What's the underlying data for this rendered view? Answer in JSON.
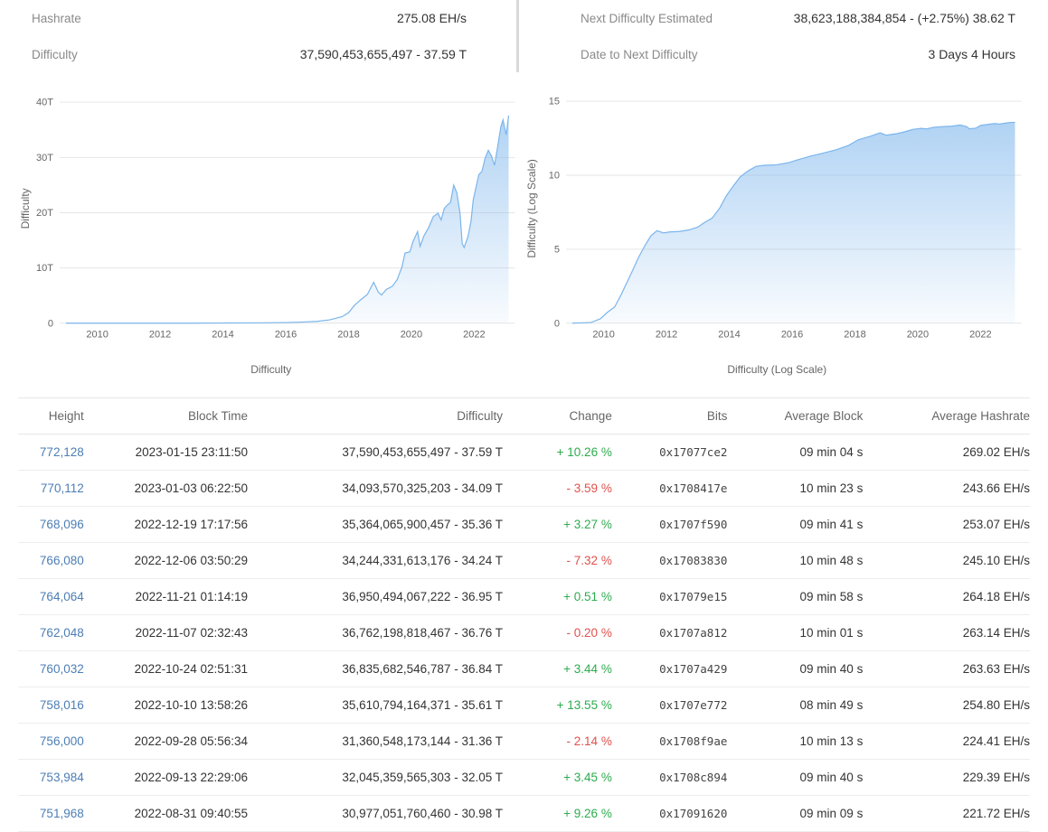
{
  "accent_colors": {
    "link": "#4c7eb5",
    "positive": "#2eab4f",
    "negative": "#e0514c",
    "chart_line": "#7cb5ec",
    "gridline": "#e6e6e6",
    "axis_text": "#666666"
  },
  "stats": {
    "left": [
      {
        "label": "Hashrate",
        "value": "275.08 EH/s"
      },
      {
        "label": "Difficulty",
        "value": "37,590,453,655,497 - 37.59 T"
      }
    ],
    "right": [
      {
        "label": "Next Difficulty Estimated",
        "value": "38,623,188,384,854 - (+2.75%) 38.62 T"
      },
      {
        "label": "Date to Next Difficulty",
        "value": "3 Days 4 Hours"
      }
    ]
  },
  "chart_data": [
    {
      "type": "area",
      "title": "Difficulty",
      "y_axis_title": "Difficulty",
      "legend_position": "none",
      "grid": true,
      "xlim": [
        2008.8,
        2023.3
      ],
      "ylim": [
        0,
        41.5
      ],
      "x_ticks": [
        2010,
        2012,
        2014,
        2016,
        2018,
        2020,
        2022
      ],
      "y_ticks": [
        {
          "v": 0,
          "label": "0"
        },
        {
          "v": 10,
          "label": "10T"
        },
        {
          "v": 20,
          "label": "20T"
        },
        {
          "v": 30,
          "label": "30T"
        },
        {
          "v": 40,
          "label": "40T"
        }
      ],
      "y_unit": "T (trillions of difficulty)",
      "points": [
        [
          2009.0,
          0
        ],
        [
          2012.0,
          0.001
        ],
        [
          2013.0,
          0.002
        ],
        [
          2014.0,
          0.03
        ],
        [
          2015.0,
          0.05
        ],
        [
          2016.0,
          0.12
        ],
        [
          2016.5,
          0.2
        ],
        [
          2017.0,
          0.33
        ],
        [
          2017.4,
          0.6
        ],
        [
          2017.8,
          1.2
        ],
        [
          2018.0,
          1.9
        ],
        [
          2018.2,
          3.3
        ],
        [
          2018.4,
          4.3
        ],
        [
          2018.6,
          5.2
        ],
        [
          2018.8,
          7.4
        ],
        [
          2018.95,
          5.6
        ],
        [
          2019.05,
          5.1
        ],
        [
          2019.2,
          6.1
        ],
        [
          2019.4,
          6.7
        ],
        [
          2019.55,
          7.9
        ],
        [
          2019.7,
          10.2
        ],
        [
          2019.8,
          12.7
        ],
        [
          2019.95,
          12.9
        ],
        [
          2020.05,
          14.7
        ],
        [
          2020.2,
          16.6
        ],
        [
          2020.28,
          13.9
        ],
        [
          2020.4,
          15.8
        ],
        [
          2020.55,
          17.3
        ],
        [
          2020.7,
          19.3
        ],
        [
          2020.85,
          19.9
        ],
        [
          2020.95,
          18.7
        ],
        [
          2021.05,
          20.8
        ],
        [
          2021.15,
          21.4
        ],
        [
          2021.25,
          21.9
        ],
        [
          2021.35,
          25.0
        ],
        [
          2021.45,
          23.6
        ],
        [
          2021.55,
          19.9
        ],
        [
          2021.62,
          14.4
        ],
        [
          2021.68,
          13.7
        ],
        [
          2021.8,
          15.6
        ],
        [
          2021.9,
          18.4
        ],
        [
          2021.97,
          22.3
        ],
        [
          2022.05,
          24.4
        ],
        [
          2022.15,
          26.9
        ],
        [
          2022.25,
          27.5
        ],
        [
          2022.35,
          29.9
        ],
        [
          2022.45,
          31.3
        ],
        [
          2022.55,
          30.3
        ],
        [
          2022.65,
          28.6
        ],
        [
          2022.75,
          32.0
        ],
        [
          2022.85,
          35.6
        ],
        [
          2022.92,
          36.8
        ],
        [
          2022.97,
          35.4
        ],
        [
          2023.02,
          34.1
        ],
        [
          2023.1,
          37.59
        ]
      ]
    },
    {
      "type": "area",
      "title": "Difficulty (Log Scale)",
      "y_axis_title": "Difficulty (Log Scale)",
      "legend_position": "none",
      "grid": true,
      "xlim": [
        2008.8,
        2023.3
      ],
      "ylim": [
        0,
        15.5
      ],
      "x_ticks": [
        2010,
        2012,
        2014,
        2016,
        2018,
        2020,
        2022
      ],
      "y_ticks": [
        {
          "v": 0,
          "label": "0"
        },
        {
          "v": 5,
          "label": "5"
        },
        {
          "v": 10,
          "label": "10"
        },
        {
          "v": 15,
          "label": "15"
        }
      ],
      "y_unit": "log10(difficulty)",
      "points": [
        [
          2009.0,
          0
        ],
        [
          2009.6,
          0.05
        ],
        [
          2009.9,
          0.3
        ],
        [
          2010.1,
          0.7
        ],
        [
          2010.35,
          1.1
        ],
        [
          2010.55,
          1.9
        ],
        [
          2010.75,
          2.8
        ],
        [
          2010.95,
          3.7
        ],
        [
          2011.1,
          4.4
        ],
        [
          2011.3,
          5.2
        ],
        [
          2011.5,
          5.9
        ],
        [
          2011.7,
          6.26
        ],
        [
          2011.9,
          6.1
        ],
        [
          2012.1,
          6.17
        ],
        [
          2012.4,
          6.2
        ],
        [
          2012.7,
          6.3
        ],
        [
          2013.0,
          6.5
        ],
        [
          2013.2,
          6.8
        ],
        [
          2013.45,
          7.1
        ],
        [
          2013.7,
          7.8
        ],
        [
          2013.9,
          8.6
        ],
        [
          2014.1,
          9.2
        ],
        [
          2014.35,
          9.9
        ],
        [
          2014.6,
          10.3
        ],
        [
          2014.85,
          10.6
        ],
        [
          2015.1,
          10.67
        ],
        [
          2015.5,
          10.71
        ],
        [
          2015.9,
          10.86
        ],
        [
          2016.2,
          11.06
        ],
        [
          2016.6,
          11.3
        ],
        [
          2017.0,
          11.5
        ],
        [
          2017.4,
          11.72
        ],
        [
          2017.8,
          12.02
        ],
        [
          2018.1,
          12.4
        ],
        [
          2018.5,
          12.65
        ],
        [
          2018.8,
          12.87
        ],
        [
          2019.0,
          12.71
        ],
        [
          2019.3,
          12.8
        ],
        [
          2019.6,
          12.95
        ],
        [
          2019.85,
          13.11
        ],
        [
          2020.1,
          13.17
        ],
        [
          2020.28,
          13.14
        ],
        [
          2020.5,
          13.24
        ],
        [
          2020.8,
          13.3
        ],
        [
          2021.1,
          13.32
        ],
        [
          2021.35,
          13.4
        ],
        [
          2021.55,
          13.3
        ],
        [
          2021.65,
          13.14
        ],
        [
          2021.85,
          13.19
        ],
        [
          2022.0,
          13.37
        ],
        [
          2022.2,
          13.43
        ],
        [
          2022.45,
          13.5
        ],
        [
          2022.6,
          13.46
        ],
        [
          2022.8,
          13.53
        ],
        [
          2022.95,
          13.57
        ],
        [
          2023.1,
          13.58
        ]
      ]
    }
  ],
  "table": {
    "headers": [
      "Height",
      "Block Time",
      "Difficulty",
      "Change",
      "Bits",
      "Average Block",
      "Average Hashrate"
    ],
    "rows": [
      {
        "height": "772,128",
        "block_time": "2023-01-15 23:11:50",
        "difficulty": "37,590,453,655,497 - 37.59 T",
        "change": "+ 10.26 %",
        "bits": "0x17077ce2",
        "avg_block": "09 min 04 s",
        "avg_hashrate": "269.02 EH/s"
      },
      {
        "height": "770,112",
        "block_time": "2023-01-03 06:22:50",
        "difficulty": "34,093,570,325,203 - 34.09 T",
        "change": "- 3.59 %",
        "bits": "0x1708417e",
        "avg_block": "10 min 23 s",
        "avg_hashrate": "243.66 EH/s"
      },
      {
        "height": "768,096",
        "block_time": "2022-12-19 17:17:56",
        "difficulty": "35,364,065,900,457 - 35.36 T",
        "change": "+ 3.27 %",
        "bits": "0x1707f590",
        "avg_block": "09 min 41 s",
        "avg_hashrate": "253.07 EH/s"
      },
      {
        "height": "766,080",
        "block_time": "2022-12-06 03:50:29",
        "difficulty": "34,244,331,613,176 - 34.24 T",
        "change": "- 7.32 %",
        "bits": "0x17083830",
        "avg_block": "10 min 48 s",
        "avg_hashrate": "245.10 EH/s"
      },
      {
        "height": "764,064",
        "block_time": "2022-11-21 01:14:19",
        "difficulty": "36,950,494,067,222 - 36.95 T",
        "change": "+ 0.51 %",
        "bits": "0x17079e15",
        "avg_block": "09 min 58 s",
        "avg_hashrate": "264.18 EH/s"
      },
      {
        "height": "762,048",
        "block_time": "2022-11-07 02:32:43",
        "difficulty": "36,762,198,818,467 - 36.76 T",
        "change": "- 0.20 %",
        "bits": "0x1707a812",
        "avg_block": "10 min 01 s",
        "avg_hashrate": "263.14 EH/s"
      },
      {
        "height": "760,032",
        "block_time": "2022-10-24 02:51:31",
        "difficulty": "36,835,682,546,787 - 36.84 T",
        "change": "+ 3.44 %",
        "bits": "0x1707a429",
        "avg_block": "09 min 40 s",
        "avg_hashrate": "263.63 EH/s"
      },
      {
        "height": "758,016",
        "block_time": "2022-10-10 13:58:26",
        "difficulty": "35,610,794,164,371 - 35.61 T",
        "change": "+ 13.55 %",
        "bits": "0x1707e772",
        "avg_block": "08 min 49 s",
        "avg_hashrate": "254.80 EH/s"
      },
      {
        "height": "756,000",
        "block_time": "2022-09-28 05:56:34",
        "difficulty": "31,360,548,173,144 - 31.36 T",
        "change": "- 2.14 %",
        "bits": "0x1708f9ae",
        "avg_block": "10 min 13 s",
        "avg_hashrate": "224.41 EH/s"
      },
      {
        "height": "753,984",
        "block_time": "2022-09-13 22:29:06",
        "difficulty": "32,045,359,565,303 - 32.05 T",
        "change": "+ 3.45 %",
        "bits": "0x1708c894",
        "avg_block": "09 min 40 s",
        "avg_hashrate": "229.39 EH/s"
      },
      {
        "height": "751,968",
        "block_time": "2022-08-31 09:40:55",
        "difficulty": "30,977,051,760,460 - 30.98 T",
        "change": "+ 9.26 %",
        "bits": "0x17091620",
        "avg_block": "09 min 09 s",
        "avg_hashrate": "221.72 EH/s"
      }
    ]
  }
}
